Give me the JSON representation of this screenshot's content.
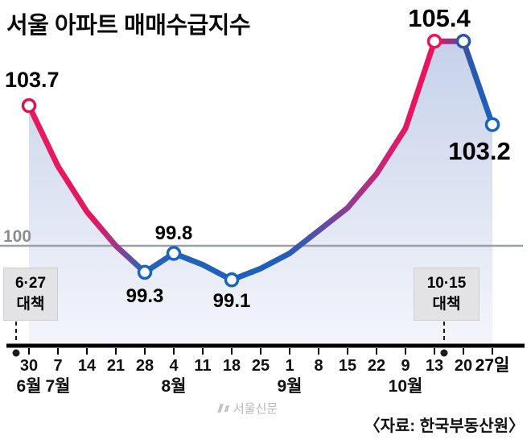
{
  "title": "서울 아파트 매매수급지수",
  "source": "〈자료: 한국부동산원〉",
  "watermark": "서울신문",
  "colors": {
    "pink": "#e6165e",
    "blue": "#1a63c0",
    "gridline_gray": "#9aa0a6",
    "axis_black": "#000000",
    "fill_top": "#c3cfe8",
    "fill_bottom": "#f2f4fb",
    "policy_box_bg": "#e3e3e5"
  },
  "annotations": {
    "policy_left": {
      "line1": "6·27",
      "line2": "대책"
    },
    "policy_right": {
      "line1": "10·15",
      "line2": "대책"
    }
  },
  "chart_data": {
    "type": "line",
    "title": "서울 아파트 매매수급지수",
    "x_tick_labels": [
      "30",
      "7",
      "14",
      "21",
      "28",
      "4",
      "11",
      "18",
      "25",
      "1",
      "8",
      "15",
      "22",
      "9",
      "13",
      "20",
      "27일"
    ],
    "month_labels": [
      {
        "label": "6월",
        "tick": 0
      },
      {
        "label": "7월",
        "tick": 1
      },
      {
        "label": "8월",
        "tick": 5
      },
      {
        "label": "9월",
        "tick": 9
      },
      {
        "label": "10월",
        "tick": 13
      }
    ],
    "values": [
      103.7,
      102.1,
      100.9,
      100.0,
      99.3,
      99.8,
      99.5,
      99.1,
      99.4,
      99.8,
      100.4,
      101.0,
      101.9,
      103.1,
      105.4,
      105.4,
      103.2
    ],
    "baseline": 100,
    "baseline_label": "100",
    "ylim": [
      97,
      107
    ],
    "grid": "single horizontal line at 100",
    "legend": "none",
    "point_labels": {
      "start": "103.7",
      "low1": "99.3",
      "local_max": "99.8",
      "low2": "99.1",
      "peak": "105.4",
      "end": "103.2"
    },
    "markers": [
      {
        "index": 0,
        "color": "#d81458"
      },
      {
        "index": 4,
        "color": "#1a63c0"
      },
      {
        "index": 5,
        "color": "#1a63c0"
      },
      {
        "index": 7,
        "color": "#1a63c0"
      },
      {
        "index": 14,
        "color": "#e6165e"
      },
      {
        "index": 15,
        "color": "#2b57a9"
      },
      {
        "index": 16,
        "color": "#1a63c0"
      }
    ],
    "gradient_stops": [
      [
        0.0,
        "#ea1a5e"
      ],
      [
        0.14,
        "#e2175f"
      ],
      [
        0.19,
        "#9c3a8e"
      ],
      [
        0.245,
        "#2563bb"
      ],
      [
        0.52,
        "#1d5fba"
      ],
      [
        0.6,
        "#4156ad"
      ],
      [
        0.69,
        "#8e3d92"
      ],
      [
        0.77,
        "#d02171"
      ],
      [
        0.83,
        "#e6165e"
      ],
      [
        0.875,
        "#e6165e"
      ],
      [
        0.95,
        "#2b57a9"
      ],
      [
        1.0,
        "#1a63c0"
      ]
    ]
  }
}
